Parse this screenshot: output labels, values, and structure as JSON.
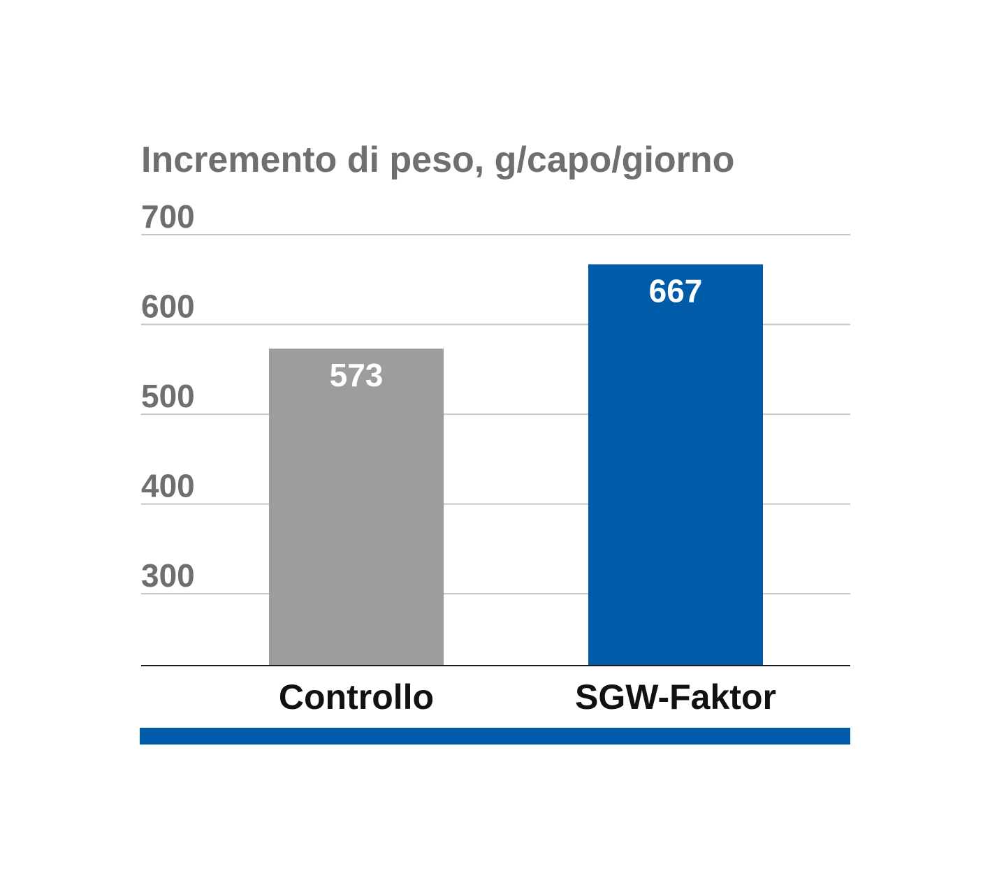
{
  "chart_data": {
    "type": "bar",
    "title": "Incremento di peso, g/capo/giorno",
    "categories": [
      "Controllo",
      "SGW-Faktor"
    ],
    "values": [
      573,
      667
    ],
    "value_labels": [
      "573",
      "667"
    ],
    "yticks": [
      300,
      400,
      500,
      600,
      700
    ],
    "ylim": [
      220,
      700
    ],
    "grid": true,
    "colors": {
      "bars": [
        "#9d9d9c",
        "#005ca9"
      ],
      "grid": "#c6c6c6",
      "baseline": "#1a1a1a",
      "accent_strip": "#005ca9",
      "title": "#6f6f6f",
      "ticks": "#6f6f6f",
      "categories": "#111111",
      "value_labels": "#ffffff"
    }
  }
}
